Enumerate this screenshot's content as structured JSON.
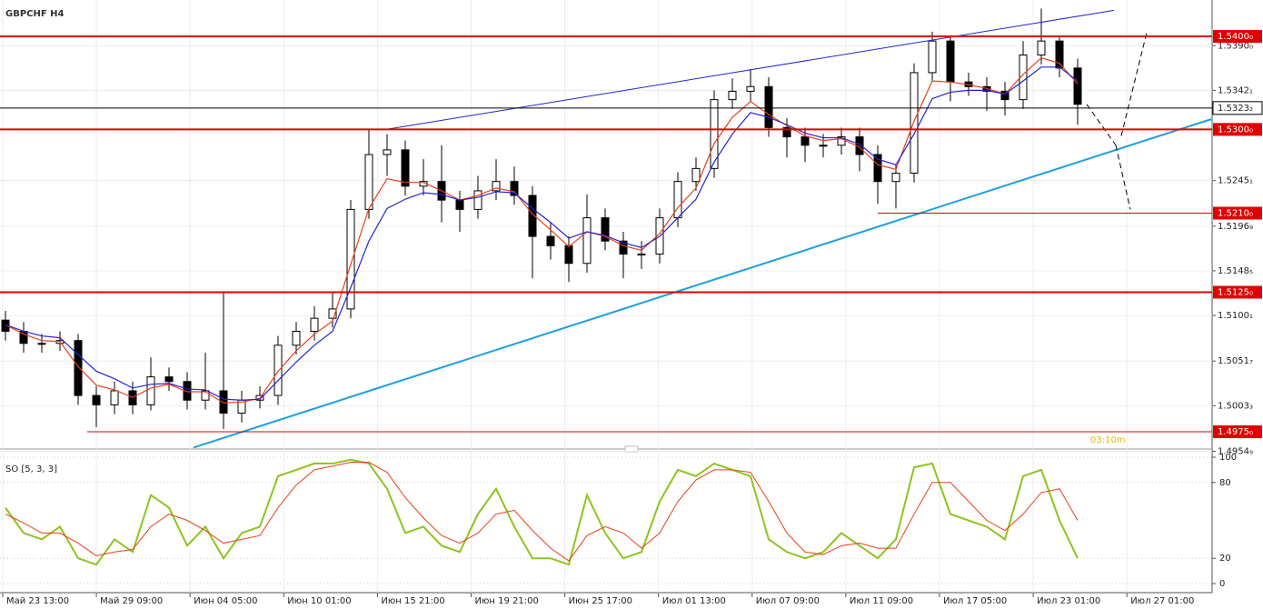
{
  "chart_data": [
    {
      "type": "candlestick",
      "title": "GBPCHF H4",
      "timer": "03:10m",
      "grid": true,
      "open": [
        1.5095,
        1.5083,
        1.507,
        1.507,
        1.5073,
        1.5014,
        1.5004,
        1.5019,
        1.5004,
        1.5034,
        1.5029,
        1.5009,
        1.5019,
        1.4995,
        1.5009,
        1.5014,
        1.5068,
        1.5083,
        1.5097,
        1.5107,
        1.5214,
        1.5273,
        1.5278,
        1.5239,
        1.5244,
        1.5224,
        1.5214,
        1.5234,
        1.5244,
        1.5229,
        1.5185,
        1.5175,
        1.5156,
        1.5205,
        1.518,
        1.5166,
        1.5166,
        1.5205,
        1.5244,
        1.5258,
        1.5332,
        1.5341,
        1.5346,
        1.5302,
        1.5292,
        1.5283,
        1.5283,
        1.5292,
        1.5273,
        1.5244,
        1.5253,
        1.5361,
        1.5395,
        1.5351,
        1.5346,
        1.5341,
        1.5332,
        1.538,
        1.5395,
        1.5366
      ],
      "high": [
        1.5105,
        1.5093,
        1.508,
        1.5083,
        1.508,
        1.5024,
        1.5029,
        1.5029,
        1.5055,
        1.5044,
        1.5039,
        1.506,
        1.5126,
        1.5019,
        1.5024,
        1.5078,
        1.5093,
        1.511,
        1.5126,
        1.5224,
        1.53,
        1.5295,
        1.5288,
        1.5268,
        1.5283,
        1.5234,
        1.525,
        1.5268,
        1.526,
        1.5239,
        1.52,
        1.5185,
        1.523,
        1.5215,
        1.519,
        1.518,
        1.5215,
        1.5254,
        1.527,
        1.5342,
        1.5355,
        1.5365,
        1.5356,
        1.5312,
        1.5302,
        1.5295,
        1.5302,
        1.5302,
        1.5283,
        1.5263,
        1.5371,
        1.5405,
        1.54,
        1.5361,
        1.5356,
        1.5351,
        1.5395,
        1.543,
        1.54,
        1.5376
      ],
      "low": [
        1.5073,
        1.506,
        1.506,
        1.5062,
        1.5004,
        1.498,
        1.4994,
        1.4994,
        1.4998,
        1.5019,
        1.4999,
        1.4999,
        1.4978,
        1.4985,
        1.5,
        1.5004,
        1.5058,
        1.5073,
        1.5087,
        1.5097,
        1.5204,
        1.525,
        1.5229,
        1.5229,
        1.52,
        1.519,
        1.5204,
        1.5224,
        1.5219,
        1.514,
        1.516,
        1.5136,
        1.5146,
        1.517,
        1.514,
        1.515,
        1.5156,
        1.5195,
        1.5234,
        1.5248,
        1.5322,
        1.533,
        1.5292,
        1.527,
        1.5265,
        1.527,
        1.5273,
        1.5255,
        1.522,
        1.5215,
        1.5243,
        1.5351,
        1.533,
        1.5336,
        1.532,
        1.5315,
        1.5322,
        1.537,
        1.5356,
        1.5305
      ],
      "close": [
        1.5083,
        1.507,
        1.507,
        1.5073,
        1.5014,
        1.5004,
        1.5019,
        1.5004,
        1.5034,
        1.5029,
        1.5009,
        1.5019,
        1.4995,
        1.5009,
        1.5014,
        1.5068,
        1.5083,
        1.5097,
        1.5107,
        1.5214,
        1.5273,
        1.5278,
        1.5239,
        1.5244,
        1.5224,
        1.5214,
        1.5234,
        1.5244,
        1.5229,
        1.5185,
        1.5175,
        1.5156,
        1.5205,
        1.518,
        1.5166,
        1.5166,
        1.5205,
        1.5244,
        1.5258,
        1.5332,
        1.5341,
        1.5346,
        1.5302,
        1.5292,
        1.5283,
        1.5283,
        1.5292,
        1.5273,
        1.5244,
        1.5253,
        1.5361,
        1.5395,
        1.5351,
        1.5346,
        1.5341,
        1.5332,
        1.538,
        1.5395,
        1.5366,
        1.5327
      ],
      "moving_averages": [
        {
          "color": "#e8401c",
          "values": [
            1.509,
            1.508,
            1.5073,
            1.5072,
            1.5045,
            1.5025,
            1.502,
            1.5012,
            1.5022,
            1.5026,
            1.5018,
            1.5018,
            1.5006,
            1.5007,
            1.5011,
            1.504,
            1.5062,
            1.508,
            1.5094,
            1.5155,
            1.5215,
            1.5247,
            1.5243,
            1.5243,
            1.5234,
            1.5224,
            1.5229,
            1.5237,
            1.5233,
            1.5209,
            1.5192,
            1.5174,
            1.519,
            1.5185,
            1.5175,
            1.517,
            1.5188,
            1.5216,
            1.5237,
            1.5285,
            1.5313,
            1.533,
            1.5316,
            1.5304,
            1.5293,
            1.5288,
            1.529,
            1.5281,
            1.5262,
            1.5257,
            1.5309,
            1.5352,
            1.5351,
            1.5348,
            1.5344,
            1.5338,
            1.5359,
            1.5377,
            1.5371,
            1.5349
          ]
        },
        {
          "color": "#2424d0",
          "values": [
            1.509,
            1.5083,
            1.5078,
            1.5076,
            1.5058,
            1.504,
            1.5032,
            1.5022,
            1.5026,
            1.5027,
            1.5021,
            1.502,
            1.501,
            1.5009,
            1.501,
            1.503,
            1.505,
            1.5068,
            1.5083,
            1.513,
            1.518,
            1.5215,
            1.5225,
            1.5232,
            1.523,
            1.5224,
            1.5227,
            1.5233,
            1.5232,
            1.5215,
            1.52,
            1.5183,
            1.519,
            1.5186,
            1.5178,
            1.5173,
            1.5185,
            1.5205,
            1.5225,
            1.5265,
            1.5295,
            1.5318,
            1.5313,
            1.5305,
            1.5296,
            1.5291,
            1.5291,
            1.5284,
            1.5268,
            1.5262,
            1.5295,
            1.5333,
            1.534,
            1.5342,
            1.5342,
            1.5338,
            1.5352,
            1.5367,
            1.5367,
            1.5352
          ]
        }
      ],
      "ylim": [
        1.49584,
        1.54391
      ],
      "yticks": [
        {
          "value": 1.539,
          "label": "1.5390₀"
        },
        {
          "value": 1.5342,
          "label": "1.5342₁"
        },
        {
          "value": 1.5245,
          "label": "1.5245₁"
        },
        {
          "value": 1.5196,
          "label": "1.5196₉"
        },
        {
          "value": 1.5148,
          "label": "1.5148₅"
        },
        {
          "value": 1.51,
          "label": "1.5100₁"
        },
        {
          "value": 1.5051,
          "label": "1.5051₇"
        },
        {
          "value": 1.5003,
          "label": "1.5003₃"
        },
        {
          "value": 1.4954,
          "label": "1.4954₉"
        }
      ],
      "levels": [
        {
          "value": 1.54,
          "label": "1.5400₀",
          "style": "thick"
        },
        {
          "value": 1.53,
          "label": "1.5300₀",
          "style": "thick"
        },
        {
          "value": 1.521,
          "label": "1.5210₀",
          "style": "thin",
          "from": 48
        },
        {
          "value": 1.5125,
          "label": "1.5125₀",
          "style": "thick"
        },
        {
          "value": 1.4975,
          "label": "1.4975₀",
          "style": "thin",
          "from": 4.5
        }
      ],
      "last_price": {
        "value": 1.5323,
        "label": "1.5323₂"
      },
      "trendlines": [
        {
          "color": "#2424d0",
          "from": [
            20.95,
            1.53
          ],
          "to": [
            61,
            1.5428
          ]
        },
        {
          "color": "#1ea0e0",
          "from": [
            10.35,
            1.4958
          ],
          "to": [
            66.35,
            1.5311
          ]
        }
      ],
      "projections": [
        {
          "from": [
            59.5,
            1.5327
          ],
          "to": [
            61.1,
            1.5283
          ]
        },
        {
          "from": [
            61.1,
            1.5283
          ],
          "to": [
            61.9,
            1.5214
          ]
        },
        {
          "from": [
            61.4,
            1.5293
          ],
          "to": [
            62.8,
            1.5404
          ]
        }
      ]
    },
    {
      "type": "line",
      "title": "SO [5, 3, 3]",
      "series": [
        {
          "color": "#8fc31f",
          "values": [
            60,
            40,
            35,
            45,
            20,
            15,
            35,
            25,
            70,
            60,
            30,
            45,
            20,
            40,
            45,
            85,
            90,
            95,
            95,
            98,
            95,
            75,
            40,
            45,
            30,
            25,
            55,
            75,
            45,
            20,
            20,
            15,
            70,
            40,
            20,
            25,
            65,
            90,
            85,
            95,
            90,
            85,
            35,
            25,
            20,
            25,
            40,
            30,
            20,
            35,
            92,
            95,
            55,
            50,
            45,
            35,
            85,
            90,
            50,
            20
          ]
        },
        {
          "color": "#e8401c",
          "values": [
            55,
            48,
            40,
            40,
            32,
            22,
            25,
            27,
            45,
            55,
            50,
            42,
            32,
            35,
            38,
            60,
            78,
            90,
            93,
            96,
            96,
            88,
            68,
            52,
            38,
            32,
            40,
            55,
            58,
            42,
            28,
            18,
            38,
            45,
            40,
            28,
            40,
            65,
            82,
            90,
            90,
            88,
            65,
            40,
            25,
            23,
            30,
            32,
            28,
            28,
            55,
            80,
            80,
            65,
            50,
            42,
            55,
            72,
            75,
            50
          ]
        }
      ],
      "ylim": [
        -8.6,
        104.3
      ],
      "yticks": [
        0,
        20,
        80,
        100
      ],
      "xtick_labels": [
        "Май 23 13:00",
        "Май 29 09:00",
        "Июн 04 05:00",
        "Июн 10 01:00",
        "Июн 15 21:00",
        "Июн 19 21:00",
        "Июн 25 17:00",
        "Июл 01 13:00",
        "Июл 07 09:00",
        "Июл 11 09:00",
        "Июл 17 05:00",
        "Июл 23 01:00",
        "Июл 27 01:00"
      ]
    }
  ]
}
